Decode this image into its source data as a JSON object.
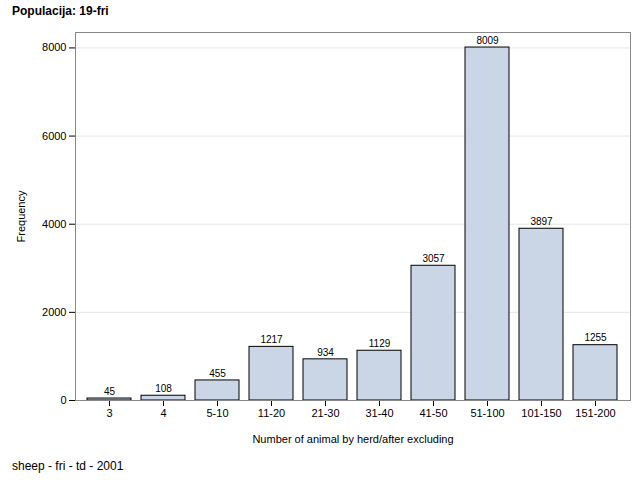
{
  "chart_data": {
    "type": "bar",
    "title": "Populacija: 19-fri",
    "caption": "sheep - fri - td - 2001",
    "x_label": "Number of animal by herd/after excluding",
    "y_label": "Frequency",
    "categories": [
      "3",
      "4",
      "5-10",
      "11-20",
      "21-30",
      "31-40",
      "41-50",
      "51-100",
      "101-150",
      "151-200"
    ],
    "values": [
      45,
      108,
      455,
      1217,
      934,
      1129,
      3057,
      8009,
      3897,
      1255
    ],
    "color": "#cad5e5",
    "ylim": [
      0,
      8350
    ],
    "yticks": [
      0,
      2000,
      4000,
      6000,
      8000
    ],
    "grid": true,
    "data_labels": true
  }
}
